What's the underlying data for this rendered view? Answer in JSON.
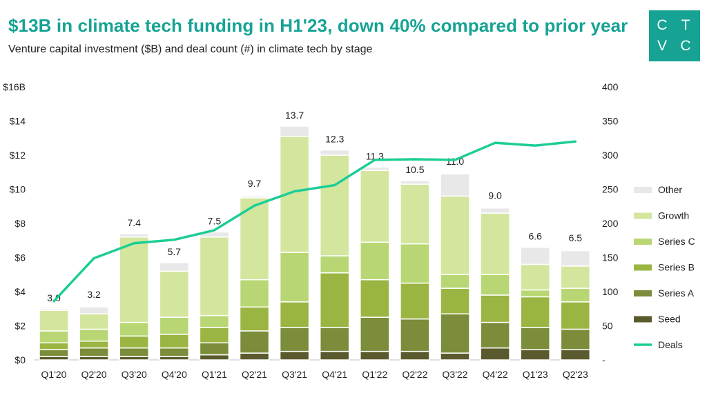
{
  "header": {
    "title": "$13B in climate tech funding in H1'23, down 40% compared to prior year",
    "subtitle": "Venture capital investment ($B) and deal count (#) in climate tech by stage",
    "logo_letters": [
      "C",
      "T",
      "V",
      "C"
    ]
  },
  "chart_data": {
    "type": "bar",
    "stacked": true,
    "categories": [
      "Q1'20",
      "Q2'20",
      "Q3'20",
      "Q4'20",
      "Q1'21",
      "Q2'21",
      "Q3'21",
      "Q4'21",
      "Q1'22",
      "Q2'22",
      "Q3'22",
      "Q4'22",
      "Q1'23",
      "Q2'23"
    ],
    "totals": [
      3.0,
      3.2,
      7.4,
      5.7,
      7.5,
      9.7,
      13.7,
      12.3,
      11.3,
      10.5,
      11.0,
      9.0,
      6.6,
      6.5
    ],
    "total_labels": [
      "3.0",
      "3.2",
      "7.4",
      "5.7",
      "7.5",
      "9.7",
      "13.7",
      "12.3",
      "11.3",
      "10.5",
      "11.0",
      "9.0",
      "6.6",
      "6.5"
    ],
    "series": [
      {
        "name": "Seed",
        "color": "#5a5a2e",
        "values": [
          0.2,
          0.2,
          0.2,
          0.2,
          0.3,
          0.4,
          0.5,
          0.5,
          0.5,
          0.5,
          0.4,
          0.7,
          0.6,
          0.6
        ]
      },
      {
        "name": "Series A",
        "color": "#7b8c3a",
        "values": [
          0.4,
          0.5,
          0.5,
          0.5,
          0.7,
          1.3,
          1.4,
          1.4,
          2.0,
          1.9,
          2.3,
          1.5,
          1.3,
          1.2
        ]
      },
      {
        "name": "Series B",
        "color": "#9bb542",
        "values": [
          0.4,
          0.4,
          0.7,
          0.8,
          0.9,
          1.4,
          1.5,
          3.2,
          2.2,
          2.1,
          1.5,
          1.6,
          1.8,
          1.6
        ]
      },
      {
        "name": "Series C",
        "color": "#b8d774",
        "values": [
          0.7,
          0.7,
          0.8,
          1.0,
          0.7,
          1.6,
          2.9,
          1.0,
          2.2,
          2.3,
          0.8,
          1.2,
          0.4,
          0.8
        ]
      },
      {
        "name": "Growth",
        "color": "#d4e59e",
        "values": [
          1.2,
          0.9,
          5.0,
          2.7,
          4.6,
          4.8,
          6.8,
          5.9,
          4.2,
          3.5,
          4.6,
          3.6,
          1.5,
          1.3
        ]
      },
      {
        "name": "Other",
        "color": "#e8e8e8",
        "values": [
          0.1,
          0.4,
          0.2,
          0.5,
          0.3,
          0.1,
          0.6,
          0.3,
          0.2,
          0.2,
          1.3,
          0.3,
          1.0,
          0.9
        ]
      }
    ],
    "line_series": {
      "name": "Deals",
      "color": "#1ccd96",
      "values": [
        86,
        149,
        171,
        176,
        190,
        226,
        247,
        256,
        293,
        294,
        293,
        318,
        314,
        320
      ]
    },
    "y_left": {
      "ylim": [
        0,
        16
      ],
      "ticks": [
        "$0",
        "$2",
        "$4",
        "$6",
        "$8",
        "$10",
        "$12",
        "$14",
        "$16B"
      ]
    },
    "y_right": {
      "ylim": [
        0,
        400
      ],
      "ticks": [
        "-",
        "50",
        "100",
        "150",
        "200",
        "250",
        "300",
        "350",
        "400"
      ]
    },
    "legend_order": [
      "Other",
      "Growth",
      "Series C",
      "Series B",
      "Series A",
      "Seed",
      "Deals"
    ],
    "legend_position": "right"
  }
}
